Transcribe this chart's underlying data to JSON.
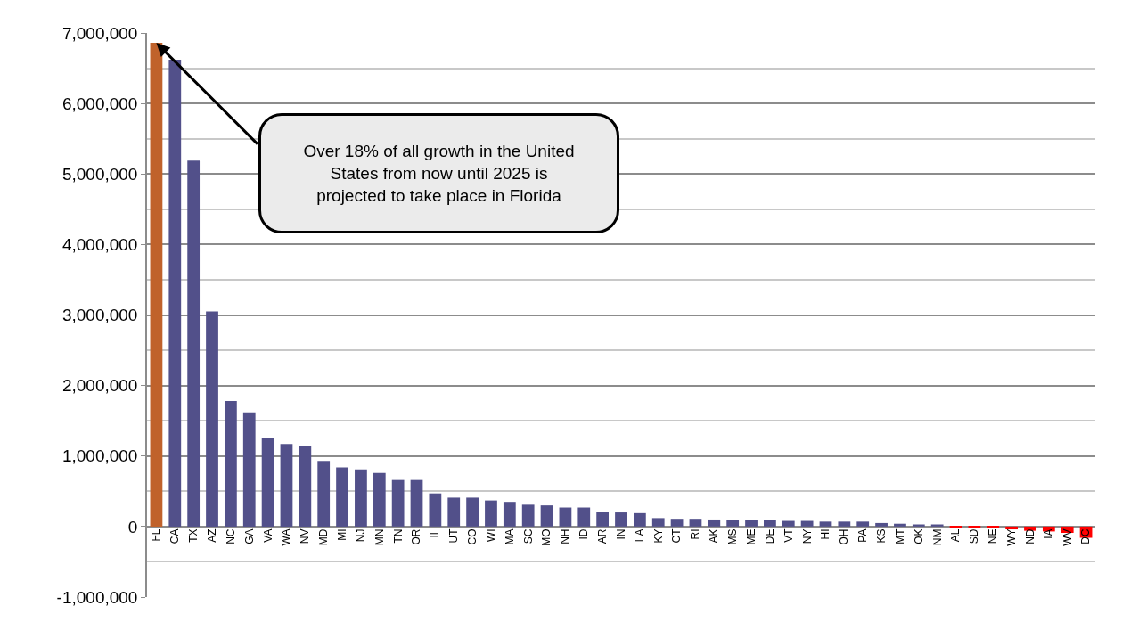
{
  "chart_data": {
    "type": "bar",
    "categories": [
      "FL",
      "CA",
      "TX",
      "AZ",
      "NC",
      "GA",
      "VA",
      "WA",
      "NV",
      "MD",
      "MI",
      "NJ",
      "MN",
      "TN",
      "OR",
      "IL",
      "UT",
      "CO",
      "WI",
      "MA",
      "SC",
      "MO",
      "NH",
      "ID",
      "AR",
      "IN",
      "LA",
      "KY",
      "CT",
      "RI",
      "AK",
      "MS",
      "ME",
      "DE",
      "VT",
      "NY",
      "HI",
      "OH",
      "PA",
      "KS",
      "MT",
      "OK",
      "NM",
      "AL",
      "SD",
      "NE",
      "WY",
      "ND",
      "IA",
      "WV",
      "DC"
    ],
    "values": [
      6860000,
      6620000,
      5190000,
      3050000,
      1780000,
      1620000,
      1260000,
      1170000,
      1140000,
      930000,
      840000,
      810000,
      760000,
      660000,
      660000,
      470000,
      410000,
      410000,
      370000,
      350000,
      310000,
      300000,
      270000,
      270000,
      210000,
      200000,
      190000,
      120000,
      110000,
      110000,
      100000,
      90000,
      90000,
      90000,
      80000,
      80000,
      70000,
      70000,
      70000,
      50000,
      40000,
      30000,
      30000,
      -10000,
      -20000,
      -20000,
      -40000,
      -60000,
      -70000,
      -90000,
      -160000
    ],
    "colors": [
      "#c0622b",
      "#52508a",
      "#52508a",
      "#52508a",
      "#52508a",
      "#52508a",
      "#52508a",
      "#52508a",
      "#52508a",
      "#52508a",
      "#52508a",
      "#52508a",
      "#52508a",
      "#52508a",
      "#52508a",
      "#52508a",
      "#52508a",
      "#52508a",
      "#52508a",
      "#52508a",
      "#52508a",
      "#52508a",
      "#52508a",
      "#52508a",
      "#52508a",
      "#52508a",
      "#52508a",
      "#52508a",
      "#52508a",
      "#52508a",
      "#52508a",
      "#52508a",
      "#52508a",
      "#52508a",
      "#52508a",
      "#52508a",
      "#52508a",
      "#52508a",
      "#52508a",
      "#52508a",
      "#52508a",
      "#52508a",
      "#52508a",
      "#ff0000",
      "#ff0000",
      "#ff0000",
      "#ff0000",
      "#ff0000",
      "#ff0000",
      "#ff0000",
      "#ff0000"
    ],
    "ylim": [
      -1000000,
      7000000
    ],
    "yticks": [
      {
        "value": -1000000,
        "label": "-1,000,000"
      },
      {
        "value": 0,
        "label": "0"
      },
      {
        "value": 1000000,
        "label": "1,000,000"
      },
      {
        "value": 2000000,
        "label": "2,000,000"
      },
      {
        "value": 3000000,
        "label": "3,000,000"
      },
      {
        "value": 4000000,
        "label": "4,000,000"
      },
      {
        "value": 5000000,
        "label": "5,000,000"
      },
      {
        "value": 6000000,
        "label": "6,000,000"
      },
      {
        "value": 7000000,
        "label": "7,000,000"
      }
    ],
    "grid": "y",
    "annotations": [
      "Over 18% of all growth in the United States from now until 2025 is projected to take place in Florida"
    ]
  }
}
